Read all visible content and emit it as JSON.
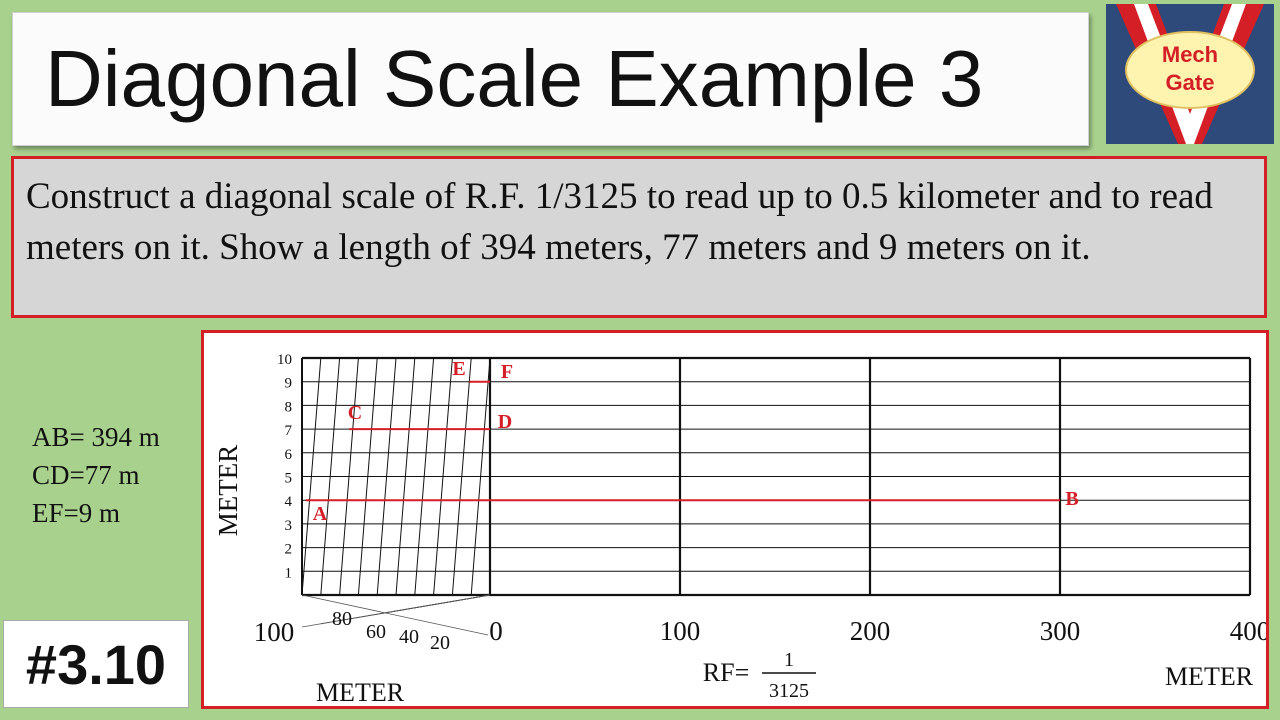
{
  "title": "Diagonal Scale Example 3",
  "logo": {
    "line1": "Mech",
    "line2": "Gate"
  },
  "problem": "Construct a diagonal scale of R.F. 1/3125 to read up to 0.5 kilometer and to read meters on it. Show a length of 394 meters, 77 meters and 9 meters on it.",
  "notes": [
    "AB= 394 m",
    "CD=77 m",
    "EF=9 m"
  ],
  "reference": "#3.10",
  "diagram": {
    "vertical_label": "METER",
    "y_ticks": [
      "1",
      "2",
      "3",
      "4",
      "5",
      "6",
      "7",
      "8",
      "9",
      "10"
    ],
    "main_labels": [
      "0",
      "100",
      "200",
      "300",
      "400"
    ],
    "left_labels": [
      "100",
      "80",
      "60",
      "40",
      "20"
    ],
    "unit_left": "METER",
    "unit_right": "METER",
    "rf_prefix": "RF=",
    "rf_numerator": "1",
    "rf_denominator": "3125",
    "points": {
      "A": "A",
      "B": "B",
      "C": "C",
      "D": "D",
      "E": "E",
      "F": "F"
    },
    "lines": [
      {
        "name": "AB",
        "from_m": 94,
        "to_m": 300,
        "row": 4
      },
      {
        "name": "CD",
        "from_m": 77,
        "to_m": 0,
        "row": 7
      },
      {
        "name": "EF",
        "from_m": 9,
        "to_m": 0,
        "row": 9
      }
    ],
    "line_color": "#d51f26"
  }
}
